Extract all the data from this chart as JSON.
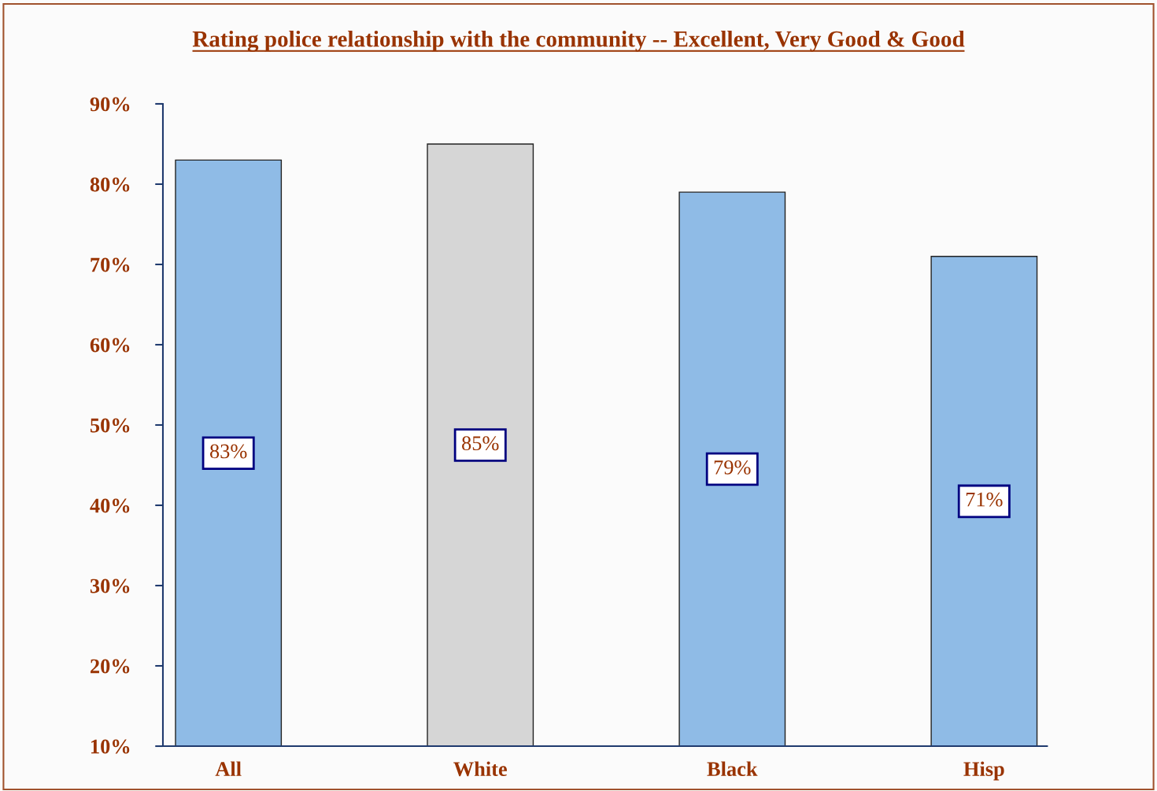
{
  "chart_data": {
    "type": "bar",
    "title": "Rating police relationship with the community -- Excellent, Very Good & Good",
    "categories": [
      "All",
      "White",
      "Black",
      "Hisp"
    ],
    "values": [
      83,
      85,
      79,
      71
    ],
    "colors": [
      "#8fbbe6",
      "#d6d6d6",
      "#8fbbe6",
      "#8fbbe6"
    ],
    "value_labels": [
      "83%",
      "85%",
      "79%",
      "71%"
    ],
    "ylim": [
      10,
      90
    ],
    "yticks": [
      {
        "value": 10,
        "label": "10%"
      },
      {
        "value": 20,
        "label": "20%"
      },
      {
        "value": 30,
        "label": "30%"
      },
      {
        "value": 40,
        "label": "40%"
      },
      {
        "value": 50,
        "label": "50%"
      },
      {
        "value": 60,
        "label": "60%"
      },
      {
        "value": 70,
        "label": "70%"
      },
      {
        "value": 80,
        "label": "80%"
      },
      {
        "value": 90,
        "label": "90%"
      }
    ],
    "grid": false,
    "legend": false
  }
}
